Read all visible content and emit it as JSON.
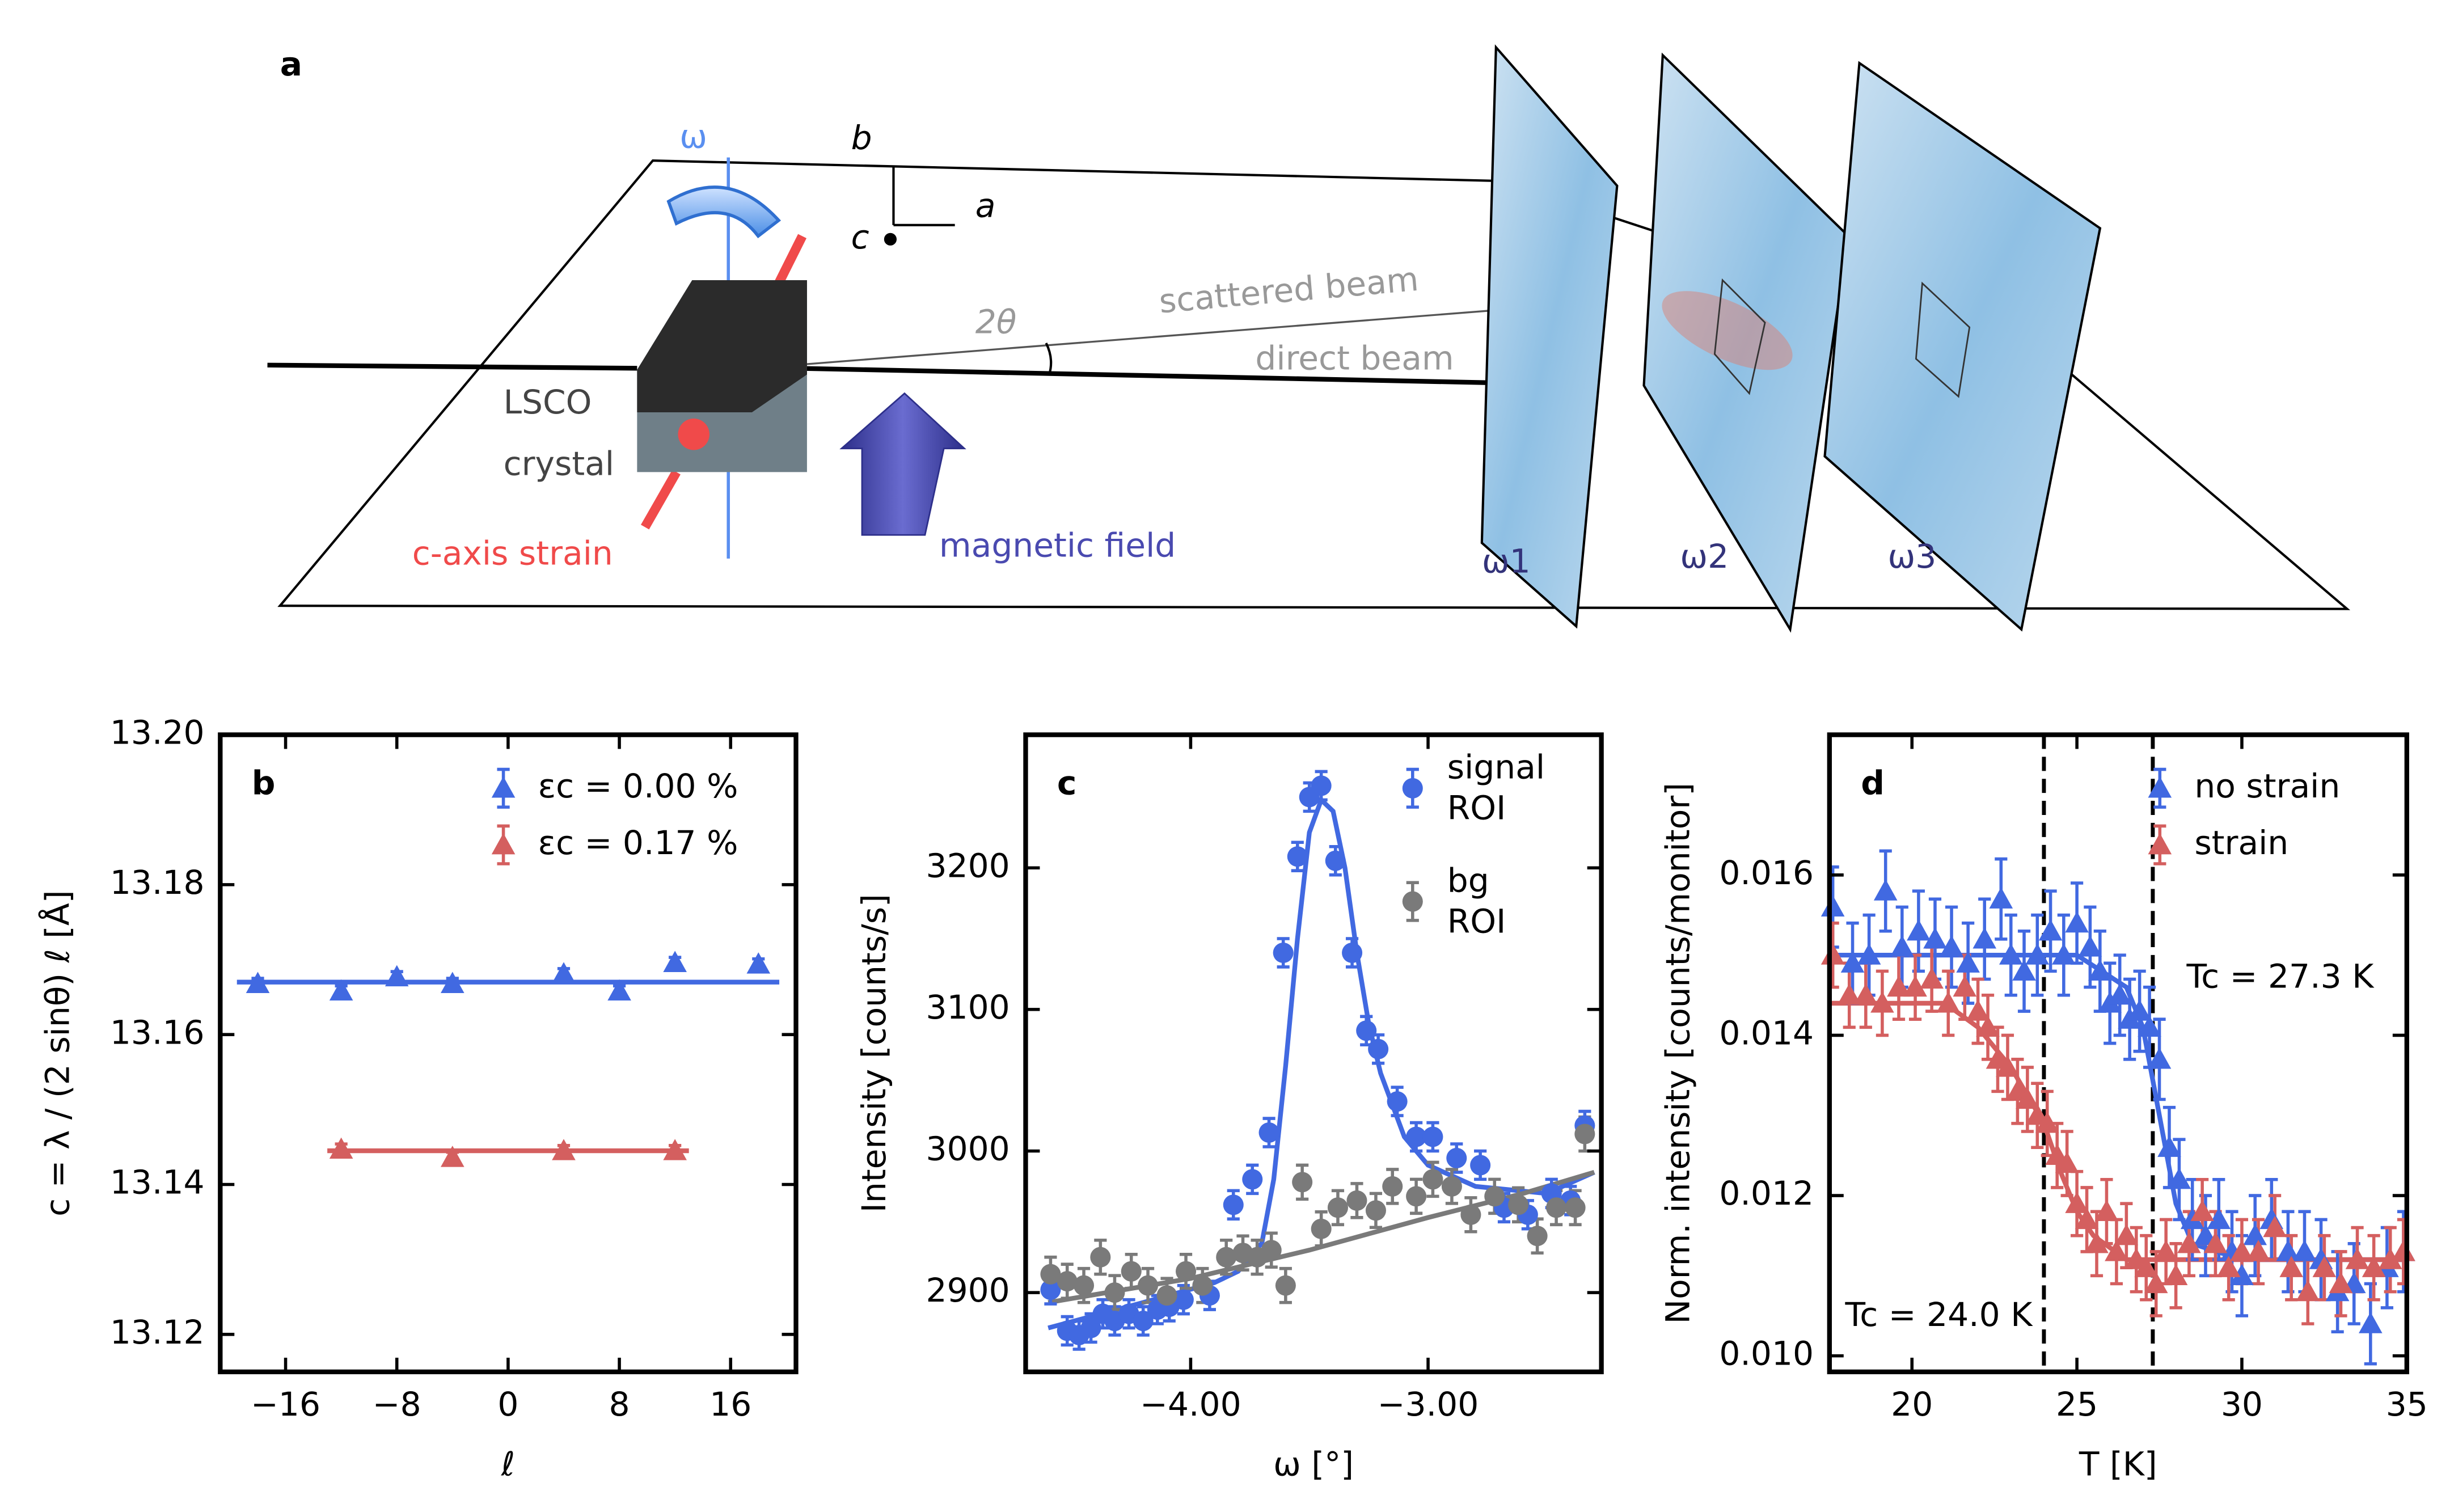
{
  "diagram": {
    "panel_label": "a",
    "omega": "ω",
    "axis_b": "b",
    "axis_c": "c",
    "axis_a": "a",
    "two_theta": "2θ",
    "scattered": "scattered beam",
    "direct": "direct beam",
    "lsco": "LSCO",
    "crystal": "crystal",
    "strain": "c-axis strain",
    "field": "magnetic field",
    "omega1": "ω1",
    "omega2": "ω2",
    "omega3": "ω3"
  },
  "chart_data": [
    {
      "type": "scatter",
      "panel_label": "b",
      "xlabel": "ℓ",
      "ylabel": "c = λ / (2 sinθ) ℓ [Å]",
      "xlim": [
        -20.7,
        20.7
      ],
      "ylim": [
        13.115,
        13.2
      ],
      "xticks": [
        {
          "value": -16,
          "label": "−16"
        },
        {
          "value": -8,
          "label": "−8"
        },
        0,
        8,
        16
      ],
      "yticks": [
        {
          "value": 13.12,
          "label": "13.12"
        },
        {
          "value": 13.14,
          "label": "13.14"
        },
        {
          "value": 13.16,
          "label": "13.16"
        },
        {
          "value": 13.18,
          "label": "13.18"
        },
        {
          "value": 13.2,
          "label": "13.20"
        }
      ],
      "marker": "triangle",
      "legend": "upper right",
      "series": [
        {
          "name": "εc = 0.00 %",
          "color": "#4169e1",
          "error": 0.0007,
          "x": [
            -18,
            -12,
            -8,
            -4,
            4,
            8,
            12,
            18
          ],
          "values": [
            13.1668,
            13.1658,
            13.1677,
            13.1668,
            13.1681,
            13.1658,
            13.1696,
            13.1694
          ]
        },
        {
          "name": "εc = 0.17 %",
          "color": "#d45f5f",
          "error": 0.0007,
          "x": [
            -12,
            -4,
            4,
            12
          ],
          "values": [
            13.1447,
            13.1436,
            13.1445,
            13.1445
          ]
        }
      ],
      "fit_lines": [
        {
          "color": "#4169e1",
          "x": [
            -19.5,
            19.5
          ],
          "values": [
            13.167,
            13.167
          ]
        },
        {
          "color": "#d45f5f",
          "x": [
            -13,
            13
          ],
          "values": [
            13.1445,
            13.1445
          ]
        }
      ]
    },
    {
      "type": "scatter",
      "panel_label": "c",
      "xlabel": "ω [°]",
      "ylabel": "Intensity [counts/s]",
      "xlim": [
        -4.695,
        -2.27
      ],
      "ylim": [
        2844,
        3294
      ],
      "xticks": [
        {
          "value": -4,
          "label": "−4.00"
        },
        {
          "value": -3,
          "label": "−3.00"
        }
      ],
      "yticks": [
        2900,
        3000,
        3100,
        3200
      ],
      "marker": "circle",
      "legend": "upper right",
      "series": [
        {
          "name": "signal ROI",
          "color": "#4169e1",
          "error": 10,
          "x": [
            -4.59,
            -4.52,
            -4.47,
            -4.42,
            -4.37,
            -4.32,
            -4.26,
            -4.2,
            -4.14,
            -4.09,
            -4.03,
            -3.92,
            -3.82,
            -3.74,
            -3.67,
            -3.61,
            -3.55,
            -3.5,
            -3.45,
            -3.39,
            -3.32,
            -3.26,
            -3.21,
            -3.13,
            -3.05,
            -2.98,
            -2.88,
            -2.78,
            -2.68,
            -2.58,
            -2.48,
            -2.4,
            -2.34
          ],
          "values": [
            2902,
            2873,
            2870,
            2875,
            2885,
            2880,
            2885,
            2880,
            2888,
            2890,
            2895,
            2898,
            2962,
            2980,
            3013,
            3140,
            3208,
            3250,
            3258,
            3205,
            3140,
            3085,
            3072,
            3035,
            3010,
            3010,
            2995,
            2990,
            2960,
            2955,
            2970,
            2965,
            3018
          ]
        },
        {
          "name": "bg ROI",
          "color": "#7a7a7a",
          "error": 12,
          "x": [
            -4.59,
            -4.52,
            -4.45,
            -4.38,
            -4.32,
            -4.25,
            -4.18,
            -4.1,
            -4.02,
            -3.95,
            -3.85,
            -3.78,
            -3.72,
            -3.66,
            -3.6,
            -3.53,
            -3.45,
            -3.38,
            -3.3,
            -3.22,
            -3.15,
            -3.05,
            -2.98,
            -2.9,
            -2.82,
            -2.72,
            -2.62,
            -2.54,
            -2.46,
            -2.38,
            -2.34
          ],
          "values": [
            2913,
            2908,
            2905,
            2925,
            2900,
            2915,
            2905,
            2898,
            2915,
            2905,
            2925,
            2928,
            2925,
            2930,
            2905,
            2978,
            2945,
            2960,
            2965,
            2958,
            2975,
            2968,
            2980,
            2975,
            2955,
            2968,
            2962,
            2940,
            2960,
            2960,
            3012
          ]
        }
      ],
      "fit_lines": [
        {
          "color": "#4169e1",
          "x": [
            -4.6,
            -4.2,
            -3.9,
            -3.8,
            -3.7,
            -3.65,
            -3.6,
            -3.55,
            -3.5,
            -3.45,
            -3.4,
            -3.35,
            -3.3,
            -3.25,
            -3.2,
            -3.1,
            -3.0,
            -2.8,
            -2.5,
            -2.3
          ],
          "values": [
            2875,
            2893,
            2907,
            2915,
            2935,
            2980,
            3060,
            3150,
            3225,
            3248,
            3240,
            3200,
            3140,
            3090,
            3055,
            3010,
            2990,
            2975,
            2970,
            2985
          ]
        },
        {
          "color": "#7a7a7a",
          "x": [
            -4.6,
            -4.0,
            -3.5,
            -3.0,
            -2.6,
            -2.3
          ],
          "values": [
            2893,
            2910,
            2930,
            2953,
            2970,
            2985
          ]
        }
      ]
    },
    {
      "type": "scatter",
      "panel_label": "d",
      "xlabel": "T [K]",
      "ylabel": "Norm. intensity [counts/monitor]",
      "xlim": [
        17.5,
        35
      ],
      "ylim": [
        0.0098,
        0.01775
      ],
      "xticks": [
        20,
        25,
        30,
        35
      ],
      "yticks": [
        {
          "value": 0.01,
          "label": "0.010"
        },
        {
          "value": 0.012,
          "label": "0.012"
        },
        {
          "value": 0.014,
          "label": "0.014"
        },
        {
          "value": 0.016,
          "label": "0.016"
        }
      ],
      "marker": "triangle",
      "legend": "upper right",
      "vlines": [
        24.0,
        27.3
      ],
      "annotations": [
        "Tc = 27.3 K",
        "Tc = 24.0 K"
      ],
      "series": [
        {
          "name": "no strain",
          "color": "#4169e1",
          "error": 0.0005,
          "x": [
            17.6,
            18.2,
            18.7,
            19.2,
            19.7,
            20.2,
            20.7,
            21.2,
            21.7,
            22.2,
            22.7,
            23.0,
            23.4,
            23.8,
            24.2,
            24.6,
            25.0,
            25.4,
            25.7,
            26.0,
            26.3,
            26.6,
            26.9,
            27.2,
            27.5,
            27.8,
            28.1,
            28.5,
            28.9,
            29.3,
            29.7,
            30.0,
            30.4,
            30.9,
            31.4,
            31.9,
            32.4,
            32.9,
            33.4,
            33.9,
            34.4,
            34.9
          ],
          "values": [
            0.0156,
            0.0149,
            0.015,
            0.0158,
            0.0151,
            0.0153,
            0.0152,
            0.0151,
            0.0149,
            0.0152,
            0.0157,
            0.015,
            0.0148,
            0.015,
            0.0153,
            0.015,
            0.0154,
            0.0151,
            0.0148,
            0.0144,
            0.0145,
            0.0142,
            0.0143,
            0.0141,
            0.0137,
            0.0126,
            0.0122,
            0.0117,
            0.0115,
            0.0117,
            0.0113,
            0.011,
            0.0115,
            0.0117,
            0.0113,
            0.0113,
            0.0112,
            0.0108,
            0.0109,
            0.0104,
            0.0111,
            0.0113
          ]
        },
        {
          "name": "strain",
          "color": "#d45f5f",
          "error": 0.0004,
          "x": [
            17.6,
            18.1,
            18.6,
            19.1,
            19.6,
            20.1,
            20.6,
            21.1,
            21.6,
            22.0,
            22.3,
            22.6,
            22.9,
            23.2,
            23.5,
            23.8,
            24.1,
            24.4,
            24.7,
            25.0,
            25.3,
            25.6,
            25.9,
            26.2,
            26.5,
            26.8,
            27.1,
            27.4,
            27.7,
            28.0,
            28.4,
            28.8,
            29.2,
            29.6,
            30.0,
            30.5,
            31.0,
            31.5,
            32.0,
            32.5,
            33.0,
            33.5,
            34.0,
            34.5,
            34.9
          ],
          "values": [
            0.015,
            0.0145,
            0.0145,
            0.0144,
            0.0146,
            0.0146,
            0.0147,
            0.0144,
            0.0146,
            0.0143,
            0.0141,
            0.0137,
            0.0136,
            0.0133,
            0.0132,
            0.013,
            0.0129,
            0.0125,
            0.0124,
            0.0119,
            0.0117,
            0.0114,
            0.0118,
            0.0113,
            0.0115,
            0.0112,
            0.0111,
            0.0109,
            0.0113,
            0.011,
            0.0114,
            0.0118,
            0.0114,
            0.0111,
            0.0113,
            0.0113,
            0.0116,
            0.0111,
            0.0108,
            0.0111,
            0.0109,
            0.0112,
            0.0111,
            0.0112,
            0.0113
          ]
        }
      ],
      "fit_lines": [
        {
          "color": "#4169e1",
          "x": [
            17.5,
            25,
            26.5,
            27,
            27.5,
            28,
            28.5,
            30,
            35
          ],
          "values": [
            0.015,
            0.015,
            0.0146,
            0.0141,
            0.013,
            0.0119,
            0.0114,
            0.0112,
            0.0112
          ]
        },
        {
          "color": "#d45f5f",
          "x": [
            17.5,
            21,
            22,
            23,
            24,
            24.5,
            25,
            25.5,
            26.5,
            35
          ],
          "values": [
            0.0144,
            0.0144,
            0.0141,
            0.0136,
            0.0129,
            0.0123,
            0.0118,
            0.0115,
            0.0112,
            0.0112
          ]
        }
      ]
    }
  ]
}
